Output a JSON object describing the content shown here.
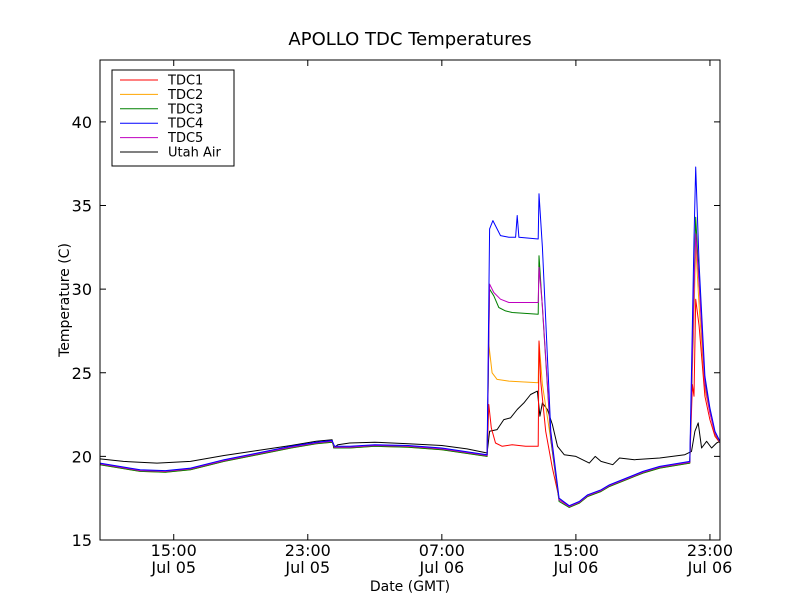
{
  "chart_data": {
    "type": "line",
    "title": "APOLLO TDC Temperatures",
    "xlabel": "Date (GMT)",
    "ylabel": "Temperature (C)",
    "x_unit": "hours since Jul 05 00:00 GMT",
    "xlim": [
      10.6,
      47.6
    ],
    "ylim": [
      15,
      43.7
    ],
    "grid": false,
    "legend_position": "top-left",
    "x_ticks": [
      {
        "value": 15,
        "line1": "15:00",
        "line2": "Jul 05"
      },
      {
        "value": 23,
        "line1": "23:00",
        "line2": "Jul 05"
      },
      {
        "value": 31,
        "line1": "07:00",
        "line2": "Jul 06"
      },
      {
        "value": 39,
        "line1": "15:00",
        "line2": "Jul 06"
      },
      {
        "value": 47,
        "line1": "23:00",
        "line2": "Jul 06"
      }
    ],
    "y_ticks": [
      "15",
      "20",
      "25",
      "30",
      "35",
      "40"
    ],
    "series": [
      {
        "name": "Utah Air",
        "color": "#000000",
        "points": [
          [
            10.6,
            19.85
          ],
          [
            12,
            19.7
          ],
          [
            14,
            19.6
          ],
          [
            16,
            19.7
          ],
          [
            18,
            20.05
          ],
          [
            20,
            20.35
          ],
          [
            22,
            20.65
          ],
          [
            23.5,
            20.9
          ],
          [
            24.45,
            21.0
          ],
          [
            24.55,
            20.5
          ],
          [
            24.8,
            20.7
          ],
          [
            25.5,
            20.8
          ],
          [
            27,
            20.85
          ],
          [
            29,
            20.75
          ],
          [
            31,
            20.65
          ],
          [
            32.5,
            20.45
          ],
          [
            33.7,
            20.2
          ],
          [
            33.85,
            21.5
          ],
          [
            34.3,
            21.6
          ],
          [
            34.7,
            22.2
          ],
          [
            35.1,
            22.3
          ],
          [
            35.5,
            22.8
          ],
          [
            35.9,
            23.2
          ],
          [
            36.3,
            23.7
          ],
          [
            36.7,
            23.9
          ],
          [
            36.85,
            22.4
          ],
          [
            37.0,
            23.2
          ],
          [
            37.3,
            22.8
          ],
          [
            37.6,
            21.9
          ],
          [
            37.9,
            20.6
          ],
          [
            38.3,
            20.1
          ],
          [
            39,
            20.0
          ],
          [
            39.8,
            19.6
          ],
          [
            40.15,
            20.0
          ],
          [
            40.5,
            19.7
          ],
          [
            41.2,
            19.5
          ],
          [
            41.6,
            19.9
          ],
          [
            42.5,
            19.8
          ],
          [
            44,
            19.9
          ],
          [
            45.5,
            20.1
          ],
          [
            45.9,
            20.3
          ],
          [
            46.1,
            21.5
          ],
          [
            46.3,
            22.0
          ],
          [
            46.5,
            20.5
          ],
          [
            46.8,
            20.9
          ],
          [
            47.1,
            20.5
          ],
          [
            47.4,
            20.8
          ],
          [
            47.6,
            20.9
          ]
        ]
      },
      {
        "name": "TDC2",
        "color": "#ffa500",
        "points": [
          [
            10.6,
            19.5
          ],
          [
            13,
            19.1
          ],
          [
            14.5,
            19.05
          ],
          [
            16,
            19.2
          ],
          [
            18,
            19.7
          ],
          [
            20,
            20.1
          ],
          [
            22,
            20.5
          ],
          [
            23.5,
            20.75
          ],
          [
            24.45,
            20.85
          ],
          [
            24.6,
            20.5
          ],
          [
            25.5,
            20.5
          ],
          [
            27,
            20.6
          ],
          [
            29,
            20.55
          ],
          [
            31,
            20.4
          ],
          [
            33.7,
            20.0
          ],
          [
            33.8,
            26.7
          ],
          [
            34.0,
            25.0
          ],
          [
            34.3,
            24.6
          ],
          [
            35,
            24.5
          ],
          [
            36.75,
            24.4
          ],
          [
            36.8,
            26.9
          ],
          [
            37.0,
            24.3
          ],
          [
            37.5,
            21.0
          ],
          [
            38,
            17.4
          ],
          [
            38.6,
            16.95
          ],
          [
            39.2,
            17.2
          ],
          [
            39.7,
            17.6
          ],
          [
            40.5,
            17.9
          ],
          [
            41,
            18.2
          ],
          [
            42,
            18.6
          ],
          [
            43,
            19.0
          ],
          [
            44,
            19.3
          ],
          [
            45.8,
            19.6
          ],
          [
            46.05,
            28.5
          ],
          [
            46.15,
            32.6
          ],
          [
            46.35,
            29.0
          ],
          [
            46.7,
            24.0
          ],
          [
            47,
            22.6
          ],
          [
            47.3,
            21.3
          ],
          [
            47.6,
            20.8
          ]
        ]
      },
      {
        "name": "TDC1",
        "color": "#ff0000",
        "points": [
          [
            10.6,
            19.55
          ],
          [
            13,
            19.15
          ],
          [
            14.5,
            19.1
          ],
          [
            16,
            19.25
          ],
          [
            18,
            19.75
          ],
          [
            20,
            20.15
          ],
          [
            22,
            20.55
          ],
          [
            23.5,
            20.8
          ],
          [
            24.45,
            20.9
          ],
          [
            24.6,
            20.55
          ],
          [
            25.5,
            20.55
          ],
          [
            27,
            20.65
          ],
          [
            29,
            20.6
          ],
          [
            31,
            20.45
          ],
          [
            33.7,
            20.05
          ],
          [
            33.8,
            23.1
          ],
          [
            33.95,
            21.7
          ],
          [
            34.2,
            20.8
          ],
          [
            34.6,
            20.6
          ],
          [
            35.2,
            20.7
          ],
          [
            36,
            20.6
          ],
          [
            36.75,
            20.6
          ],
          [
            36.8,
            26.9
          ],
          [
            36.9,
            24.5
          ],
          [
            37.2,
            21.5
          ],
          [
            37.6,
            19.3
          ],
          [
            38,
            17.5
          ],
          [
            38.6,
            17.0
          ],
          [
            39.2,
            17.25
          ],
          [
            39.7,
            17.65
          ],
          [
            40.5,
            17.95
          ],
          [
            41,
            18.25
          ],
          [
            42,
            18.65
          ],
          [
            43,
            19.05
          ],
          [
            44,
            19.35
          ],
          [
            45.8,
            19.65
          ],
          [
            45.95,
            24.3
          ],
          [
            46.05,
            23.6
          ],
          [
            46.15,
            29.4
          ],
          [
            46.35,
            27.8
          ],
          [
            46.7,
            23.6
          ],
          [
            47,
            22.2
          ],
          [
            47.3,
            21.2
          ],
          [
            47.6,
            20.8
          ]
        ]
      },
      {
        "name": "TDC3",
        "color": "#008000",
        "points": [
          [
            10.6,
            19.5
          ],
          [
            13,
            19.1
          ],
          [
            14.5,
            19.05
          ],
          [
            16,
            19.2
          ],
          [
            18,
            19.7
          ],
          [
            20,
            20.1
          ],
          [
            22,
            20.5
          ],
          [
            23.5,
            20.75
          ],
          [
            24.45,
            20.85
          ],
          [
            24.6,
            20.5
          ],
          [
            25.5,
            20.5
          ],
          [
            27,
            20.6
          ],
          [
            29,
            20.55
          ],
          [
            31,
            20.4
          ],
          [
            33.7,
            20.0
          ],
          [
            33.85,
            30.0
          ],
          [
            34.1,
            29.6
          ],
          [
            34.4,
            28.9
          ],
          [
            34.8,
            28.7
          ],
          [
            35.2,
            28.6
          ],
          [
            36.75,
            28.5
          ],
          [
            36.8,
            32.0
          ],
          [
            37.0,
            28.9
          ],
          [
            37.5,
            21.0
          ],
          [
            38,
            17.3
          ],
          [
            38.6,
            16.95
          ],
          [
            39.2,
            17.2
          ],
          [
            39.7,
            17.6
          ],
          [
            40.5,
            17.9
          ],
          [
            41,
            18.2
          ],
          [
            42,
            18.6
          ],
          [
            43,
            19.0
          ],
          [
            44,
            19.3
          ],
          [
            45.8,
            19.6
          ],
          [
            46.05,
            30.0
          ],
          [
            46.15,
            34.3
          ],
          [
            46.35,
            30.5
          ],
          [
            46.7,
            24.5
          ],
          [
            47,
            22.7
          ],
          [
            47.3,
            21.4
          ],
          [
            47.6,
            20.8
          ]
        ]
      },
      {
        "name": "TDC5",
        "color": "#bf00bf",
        "points": [
          [
            10.6,
            19.55
          ],
          [
            13,
            19.15
          ],
          [
            14.5,
            19.1
          ],
          [
            16,
            19.25
          ],
          [
            18,
            19.75
          ],
          [
            20,
            20.15
          ],
          [
            22,
            20.55
          ],
          [
            23.5,
            20.8
          ],
          [
            24.45,
            20.9
          ],
          [
            24.6,
            20.55
          ],
          [
            25.5,
            20.55
          ],
          [
            27,
            20.65
          ],
          [
            29,
            20.6
          ],
          [
            31,
            20.45
          ],
          [
            33.7,
            20.05
          ],
          [
            33.85,
            30.3
          ],
          [
            34.1,
            29.8
          ],
          [
            34.5,
            29.4
          ],
          [
            35,
            29.2
          ],
          [
            36.75,
            29.2
          ],
          [
            36.8,
            31.3
          ],
          [
            37.0,
            29.0
          ],
          [
            37.5,
            21.2
          ],
          [
            38,
            17.4
          ],
          [
            38.6,
            17.0
          ],
          [
            39.2,
            17.25
          ],
          [
            39.7,
            17.65
          ],
          [
            40.5,
            17.95
          ],
          [
            41,
            18.25
          ],
          [
            42,
            18.65
          ],
          [
            43,
            19.05
          ],
          [
            44,
            19.35
          ],
          [
            45.8,
            19.65
          ],
          [
            46.05,
            30.0
          ],
          [
            46.15,
            33.3
          ],
          [
            46.35,
            30.3
          ],
          [
            46.7,
            24.3
          ],
          [
            47,
            22.6
          ],
          [
            47.3,
            21.4
          ],
          [
            47.6,
            20.85
          ]
        ]
      },
      {
        "name": "TDC4",
        "color": "#0000ff",
        "points": [
          [
            10.6,
            19.6
          ],
          [
            13,
            19.2
          ],
          [
            14.5,
            19.15
          ],
          [
            16,
            19.3
          ],
          [
            18,
            19.8
          ],
          [
            20,
            20.2
          ],
          [
            22,
            20.6
          ],
          [
            23.5,
            20.85
          ],
          [
            24.45,
            20.95
          ],
          [
            24.6,
            20.6
          ],
          [
            25.5,
            20.6
          ],
          [
            27,
            20.7
          ],
          [
            29,
            20.65
          ],
          [
            31,
            20.5
          ],
          [
            33.7,
            20.1
          ],
          [
            33.85,
            33.6
          ],
          [
            34.05,
            34.1
          ],
          [
            34.5,
            33.2
          ],
          [
            35.0,
            33.1
          ],
          [
            35.4,
            33.1
          ],
          [
            35.5,
            34.4
          ],
          [
            35.6,
            33.1
          ],
          [
            36.75,
            33.0
          ],
          [
            36.8,
            35.7
          ],
          [
            37.0,
            32.5
          ],
          [
            37.5,
            21.5
          ],
          [
            38,
            17.5
          ],
          [
            38.6,
            17.05
          ],
          [
            39.2,
            17.3
          ],
          [
            39.7,
            17.7
          ],
          [
            40.5,
            18.0
          ],
          [
            41,
            18.3
          ],
          [
            42,
            18.7
          ],
          [
            43,
            19.1
          ],
          [
            44,
            19.4
          ],
          [
            45.8,
            19.7
          ],
          [
            46.05,
            33.0
          ],
          [
            46.15,
            37.3
          ],
          [
            46.35,
            31.5
          ],
          [
            46.7,
            24.8
          ],
          [
            47,
            22.9
          ],
          [
            47.3,
            21.5
          ],
          [
            47.6,
            20.9
          ]
        ]
      }
    ],
    "legend": [
      {
        "name": "TDC1",
        "color": "#ff0000"
      },
      {
        "name": "TDC2",
        "color": "#ffa500"
      },
      {
        "name": "TDC3",
        "color": "#008000"
      },
      {
        "name": "TDC4",
        "color": "#0000ff"
      },
      {
        "name": "TDC5",
        "color": "#bf00bf"
      },
      {
        "name": "Utah Air",
        "color": "#000000"
      }
    ]
  }
}
